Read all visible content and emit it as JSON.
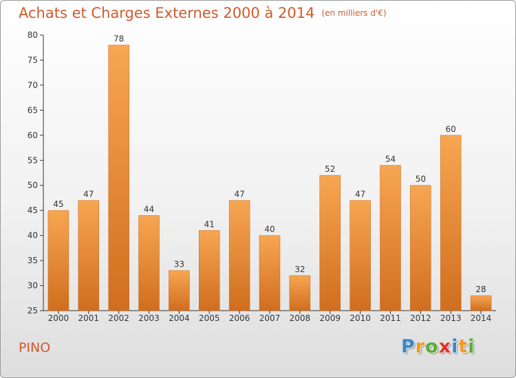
{
  "colors": {
    "accent": "#d05a2c",
    "bar_light": "#f7a652",
    "bar_dark": "#d06e1e"
  },
  "chart_data": {
    "type": "bar",
    "title": "Achats et Charges Externes 2000 à 2014",
    "subtitle": "(en milliers d'€)",
    "categories": [
      "2000",
      "2001",
      "2002",
      "2003",
      "2004",
      "2005",
      "2006",
      "2007",
      "2008",
      "2009",
      "2010",
      "2011",
      "2012",
      "2013",
      "2014"
    ],
    "values": [
      45,
      47,
      78,
      44,
      33,
      41,
      47,
      40,
      32,
      52,
      47,
      54,
      50,
      60,
      28
    ],
    "ylim": [
      25,
      80
    ],
    "yticks": [
      25,
      30,
      35,
      40,
      45,
      50,
      55,
      60,
      65,
      70,
      75,
      80
    ],
    "grid": false,
    "legend": "none"
  },
  "footer": {
    "city": "PINO",
    "logo_letters": [
      {
        "ch": "P",
        "color": "#3a86c8"
      },
      {
        "ch": "r",
        "color": "#f29a1f"
      },
      {
        "ch": "o",
        "color": "#5aaa3c"
      },
      {
        "ch": "x",
        "color": "#e2332b"
      },
      {
        "ch": "i",
        "color": "#3a86c8"
      },
      {
        "ch": "t",
        "color": "#f29a1f"
      },
      {
        "ch": "i",
        "color": "#5aaa3c"
      }
    ]
  }
}
